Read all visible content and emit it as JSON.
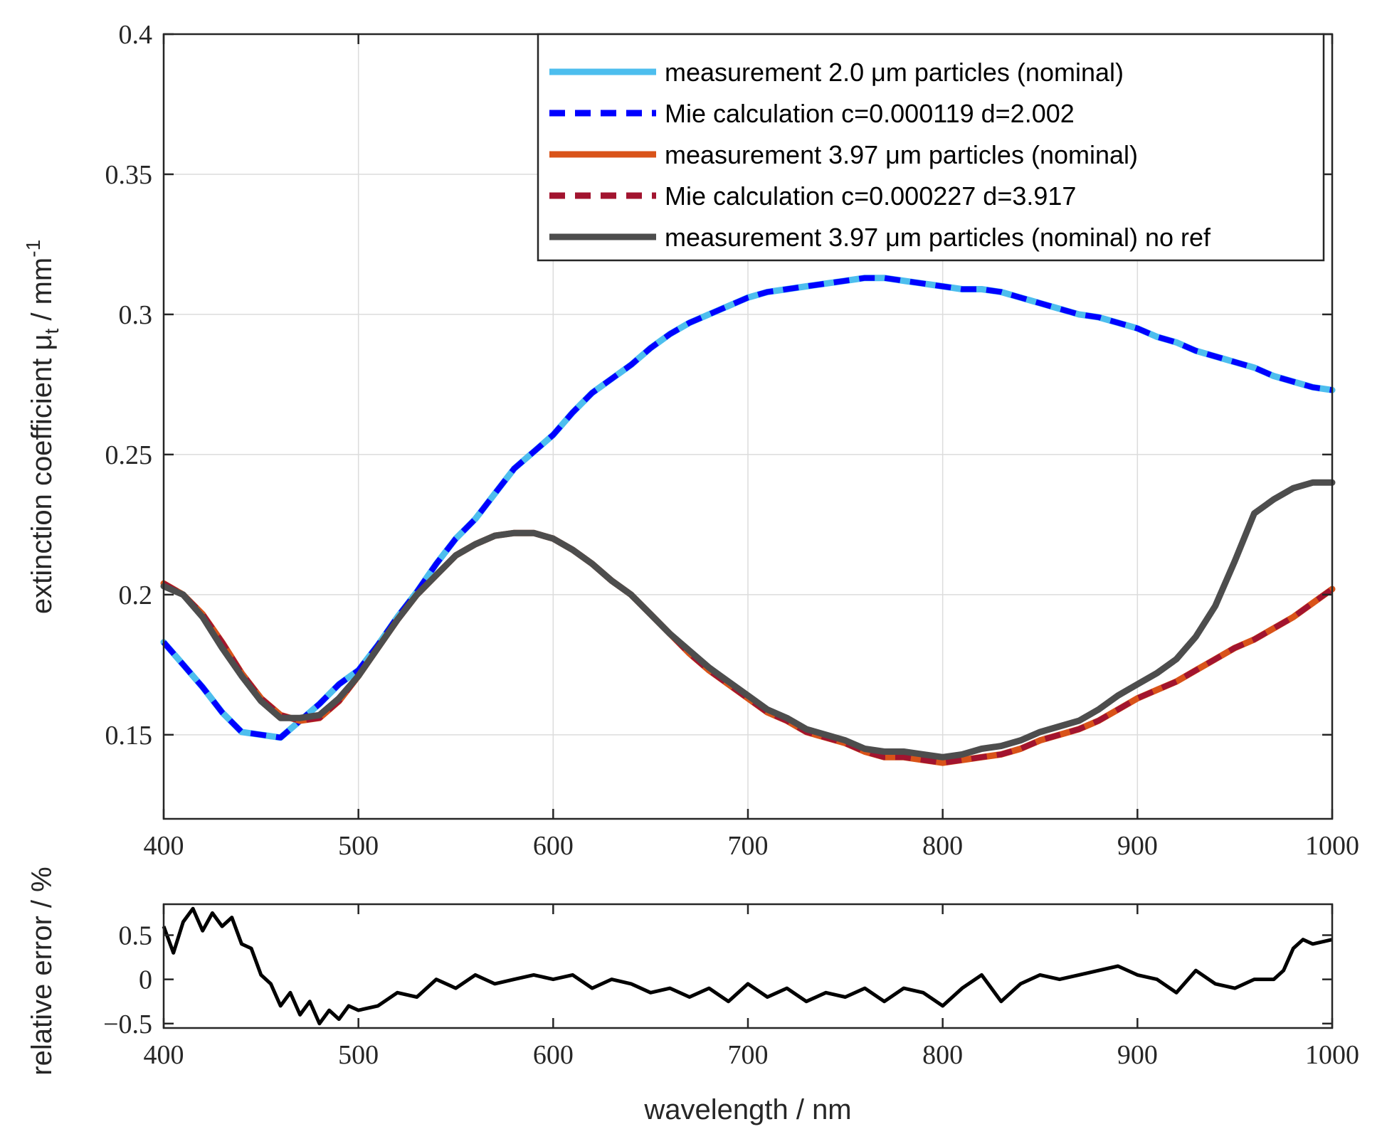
{
  "chart_data": [
    {
      "type": "line",
      "xlabel": "",
      "ylabel": "extinction coefficient μ",
      "ylabel_sub": "t",
      "ylabel_unit": " / mm",
      "ylabel_exp": "-1",
      "xlim": [
        400,
        1000
      ],
      "ylim": [
        0.12,
        0.4
      ],
      "xticks": [
        400,
        500,
        600,
        700,
        800,
        900,
        1000
      ],
      "xtick_labels": [
        "400",
        "500",
        "600",
        "700",
        "800",
        "900",
        "1000"
      ],
      "yticks": [
        0.15,
        0.2,
        0.25,
        0.3,
        0.35,
        0.4
      ],
      "ytick_labels": [
        "0.15",
        "0.2",
        "0.25",
        "0.3",
        "0.35",
        "0.4"
      ],
      "grid": true,
      "legend_position": "top-right",
      "x": [
        400,
        410,
        420,
        430,
        440,
        450,
        460,
        470,
        480,
        490,
        500,
        510,
        520,
        530,
        540,
        550,
        560,
        570,
        580,
        590,
        600,
        610,
        620,
        630,
        640,
        650,
        660,
        670,
        680,
        690,
        700,
        710,
        720,
        730,
        740,
        750,
        760,
        770,
        780,
        790,
        800,
        810,
        820,
        830,
        840,
        850,
        860,
        870,
        880,
        890,
        900,
        910,
        920,
        930,
        940,
        950,
        960,
        970,
        980,
        990,
        1000
      ],
      "series": [
        {
          "name": "measurement 2.0 μm particles (nominal)",
          "color": "#4DBEEE",
          "dash": "solid",
          "values": [
            0.183,
            0.175,
            0.167,
            0.158,
            0.151,
            0.15,
            0.149,
            0.155,
            0.161,
            0.168,
            0.173,
            0.182,
            0.192,
            0.201,
            0.211,
            0.22,
            0.227,
            0.236,
            0.245,
            0.251,
            0.257,
            0.265,
            0.272,
            0.277,
            0.282,
            0.288,
            0.293,
            0.297,
            0.3,
            0.303,
            0.306,
            0.308,
            0.309,
            0.31,
            0.311,
            0.312,
            0.313,
            0.313,
            0.312,
            0.311,
            0.31,
            0.309,
            0.309,
            0.308,
            0.306,
            0.304,
            0.302,
            0.3,
            0.299,
            0.297,
            0.295,
            0.292,
            0.29,
            0.287,
            0.285,
            0.283,
            0.281,
            0.278,
            0.276,
            0.274,
            0.273
          ]
        },
        {
          "name": "Mie calculation c=0.000119 d=2.002",
          "color": "#0000FF",
          "dash": "dashed",
          "values": [
            0.183,
            0.175,
            0.167,
            0.158,
            0.151,
            0.15,
            0.149,
            0.155,
            0.161,
            0.168,
            0.173,
            0.182,
            0.192,
            0.201,
            0.211,
            0.22,
            0.227,
            0.236,
            0.245,
            0.251,
            0.257,
            0.265,
            0.272,
            0.277,
            0.282,
            0.288,
            0.293,
            0.297,
            0.3,
            0.303,
            0.306,
            0.308,
            0.309,
            0.31,
            0.311,
            0.312,
            0.313,
            0.313,
            0.312,
            0.311,
            0.31,
            0.309,
            0.309,
            0.308,
            0.306,
            0.304,
            0.302,
            0.3,
            0.299,
            0.297,
            0.295,
            0.292,
            0.29,
            0.287,
            0.285,
            0.283,
            0.281,
            0.278,
            0.276,
            0.274,
            0.273
          ]
        },
        {
          "name": "measurement 3.97 μm particles (nominal)",
          "color": "#D95319",
          "dash": "solid",
          "values": [
            0.204,
            0.2,
            0.193,
            0.183,
            0.172,
            0.163,
            0.157,
            0.155,
            0.156,
            0.162,
            0.171,
            0.181,
            0.191,
            0.2,
            0.207,
            0.214,
            0.218,
            0.221,
            0.222,
            0.222,
            0.22,
            0.216,
            0.211,
            0.205,
            0.2,
            0.193,
            0.186,
            0.179,
            0.173,
            0.168,
            0.163,
            0.158,
            0.155,
            0.151,
            0.149,
            0.147,
            0.144,
            0.142,
            0.142,
            0.141,
            0.14,
            0.141,
            0.142,
            0.143,
            0.145,
            0.148,
            0.15,
            0.152,
            0.155,
            0.159,
            0.163,
            0.166,
            0.169,
            0.173,
            0.177,
            0.181,
            0.184,
            0.188,
            0.192,
            0.197,
            0.202
          ]
        },
        {
          "name": "Mie calculation c=0.000227 d=3.917",
          "color": "#A2142F",
          "dash": "dashed",
          "values": [
            0.204,
            0.2,
            0.193,
            0.183,
            0.172,
            0.163,
            0.157,
            0.155,
            0.156,
            0.162,
            0.171,
            0.181,
            0.191,
            0.2,
            0.207,
            0.214,
            0.218,
            0.221,
            0.222,
            0.222,
            0.22,
            0.216,
            0.211,
            0.205,
            0.2,
            0.193,
            0.186,
            0.179,
            0.173,
            0.168,
            0.163,
            0.158,
            0.155,
            0.151,
            0.149,
            0.147,
            0.144,
            0.142,
            0.142,
            0.141,
            0.14,
            0.141,
            0.142,
            0.143,
            0.145,
            0.148,
            0.15,
            0.152,
            0.155,
            0.159,
            0.163,
            0.166,
            0.169,
            0.173,
            0.177,
            0.181,
            0.184,
            0.188,
            0.192,
            0.197,
            0.202
          ]
        },
        {
          "name": "measurement 3.97 μm particles (nominal) no ref",
          "color": "#4D4D4D",
          "dash": "solid",
          "values": [
            0.203,
            0.2,
            0.192,
            0.181,
            0.171,
            0.162,
            0.156,
            0.156,
            0.157,
            0.163,
            0.171,
            0.181,
            0.191,
            0.2,
            0.207,
            0.214,
            0.218,
            0.221,
            0.222,
            0.222,
            0.22,
            0.216,
            0.211,
            0.205,
            0.2,
            0.193,
            0.186,
            0.18,
            0.174,
            0.169,
            0.164,
            0.159,
            0.156,
            0.152,
            0.15,
            0.148,
            0.145,
            0.144,
            0.144,
            0.143,
            0.142,
            0.143,
            0.145,
            0.146,
            0.148,
            0.151,
            0.153,
            0.155,
            0.159,
            0.164,
            0.168,
            0.172,
            0.177,
            0.185,
            0.196,
            0.212,
            0.229,
            0.234,
            0.238,
            0.24,
            0.24
          ]
        }
      ]
    },
    {
      "type": "line",
      "xlabel": "wavelength / nm",
      "ylabel": "relative error / %",
      "xlim": [
        400,
        1000
      ],
      "ylim": [
        -0.55,
        0.85
      ],
      "xticks": [
        400,
        500,
        600,
        700,
        800,
        900,
        1000
      ],
      "xtick_labels": [
        "400",
        "500",
        "600",
        "700",
        "800",
        "900",
        "1000"
      ],
      "yticks": [
        -0.5,
        0,
        0.5
      ],
      "ytick_labels": [
        "−0.5",
        "0",
        "0.5"
      ],
      "grid": false,
      "x": [
        400,
        405,
        410,
        415,
        420,
        425,
        430,
        435,
        440,
        445,
        450,
        455,
        460,
        465,
        470,
        475,
        480,
        485,
        490,
        495,
        500,
        510,
        520,
        530,
        540,
        550,
        560,
        570,
        580,
        590,
        600,
        610,
        620,
        630,
        640,
        650,
        660,
        670,
        680,
        690,
        700,
        710,
        720,
        730,
        740,
        750,
        760,
        770,
        780,
        790,
        800,
        810,
        820,
        830,
        840,
        850,
        860,
        870,
        880,
        890,
        900,
        910,
        920,
        930,
        940,
        950,
        960,
        970,
        975,
        980,
        985,
        990,
        1000
      ],
      "series": [
        {
          "name": "relative error",
          "color": "#000000",
          "dash": "solid",
          "values": [
            0.6,
            0.3,
            0.65,
            0.8,
            0.55,
            0.75,
            0.6,
            0.7,
            0.4,
            0.35,
            0.05,
            -0.05,
            -0.3,
            -0.15,
            -0.4,
            -0.25,
            -0.5,
            -0.35,
            -0.45,
            -0.3,
            -0.35,
            -0.3,
            -0.15,
            -0.2,
            0.0,
            -0.1,
            0.05,
            -0.05,
            0.0,
            0.05,
            0.0,
            0.05,
            -0.1,
            0.0,
            -0.05,
            -0.15,
            -0.1,
            -0.2,
            -0.1,
            -0.25,
            -0.05,
            -0.2,
            -0.1,
            -0.25,
            -0.15,
            -0.2,
            -0.1,
            -0.25,
            -0.1,
            -0.15,
            -0.3,
            -0.1,
            0.05,
            -0.25,
            -0.05,
            0.05,
            0.0,
            0.05,
            0.1,
            0.15,
            0.05,
            0.0,
            -0.15,
            0.1,
            -0.05,
            -0.1,
            0.0,
            0.0,
            0.1,
            0.35,
            0.45,
            0.4,
            0.45
          ]
        }
      ]
    }
  ]
}
